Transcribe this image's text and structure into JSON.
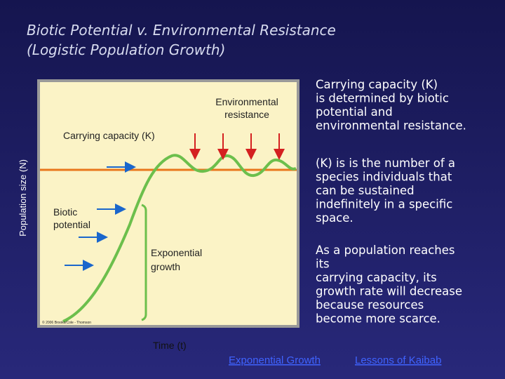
{
  "header": {
    "title_lines": [
      "Biotic Potential v. Environmental Resistance",
      "(Logistic Population Growth)"
    ]
  },
  "figure": {
    "environmental_resistance_lines": [
      "Environmental",
      "resistance"
    ],
    "carrying_capacity_label": "Carrying capacity (K)",
    "biotic_potential_lines": [
      "Biotic",
      "potential"
    ],
    "exponential_growth_lines": [
      "Exponential",
      "growth"
    ],
    "y_axis_label": "Population size (N)",
    "x_axis_label": "Time (t)",
    "credit": "© 2006 Brooks/Cole - Thomson"
  },
  "paragraphs": [
    [
      "Carrying capacity (K)",
      "is determined by biotic",
      "potential and",
      "environmental resistance."
    ],
    [
      "(K) is is the number of a",
      "species individuals that",
      "can be sustained",
      "indefinitely in a specific",
      "space."
    ],
    [
      "As a population reaches",
      "its",
      "carrying capacity, its",
      "growth rate will decrease",
      "because resources",
      "become more scarce."
    ]
  ],
  "links": [
    "Exponential Growth",
    "Lessons of Kaibab"
  ]
}
